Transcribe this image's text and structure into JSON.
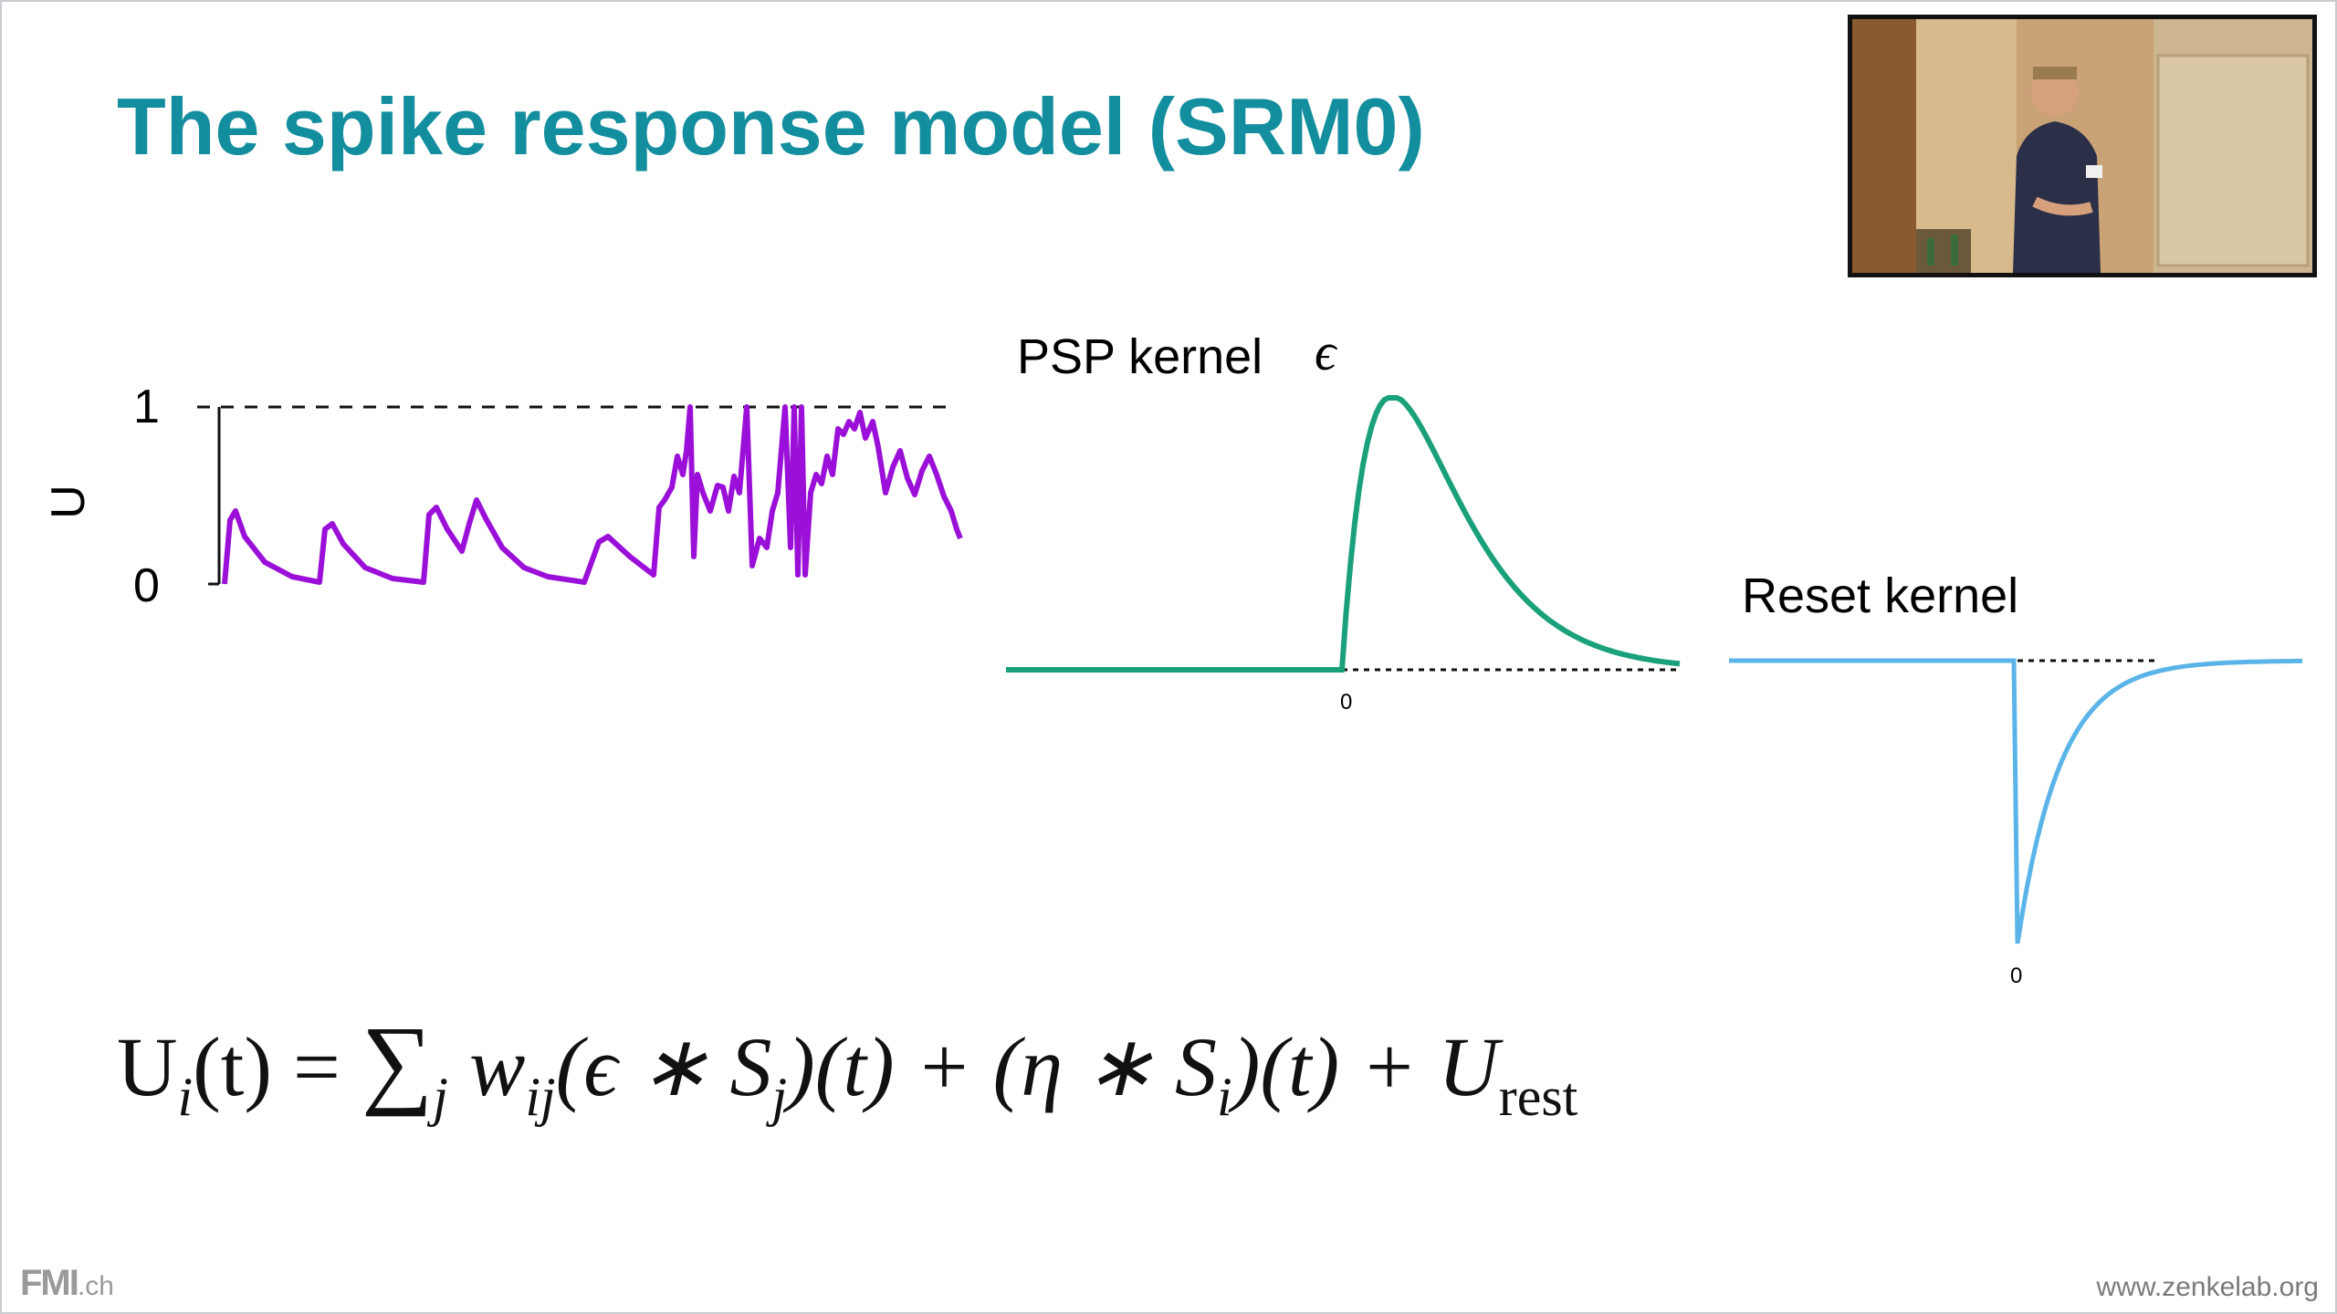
{
  "slide": {
    "title": "The spike response model (SRM0)",
    "title_color": "#138e9e"
  },
  "membrane_plot": {
    "ylabel": "U",
    "tick_top": "1",
    "tick_bottom": "0",
    "trace_color": "#9b10d8"
  },
  "psp_kernel": {
    "label": "PSP kernel",
    "symbol": "ϵ",
    "zero_tick": "0",
    "curve_color": "#1aa07a"
  },
  "reset_kernel": {
    "label": "Reset kernel",
    "zero_tick": "0",
    "curve_color": "#5ab4e8"
  },
  "formula": {
    "lhs": "U",
    "lhs_sub": "i",
    "lhs_arg": "(t) = ",
    "sum": "∑",
    "sum_sub": "j",
    "w": " w",
    "w_sub": "ij",
    "term1": "(ϵ ∗ S",
    "term1_sub": "j",
    "term1_end": ")(t) + (η ∗ S",
    "term2_sub": "i",
    "term2_end": ")(t) + U",
    "rest_sub": "rest"
  },
  "footer": {
    "logo": "FMI",
    "domain": ".ch",
    "url": "www.zenkelab.org"
  }
}
